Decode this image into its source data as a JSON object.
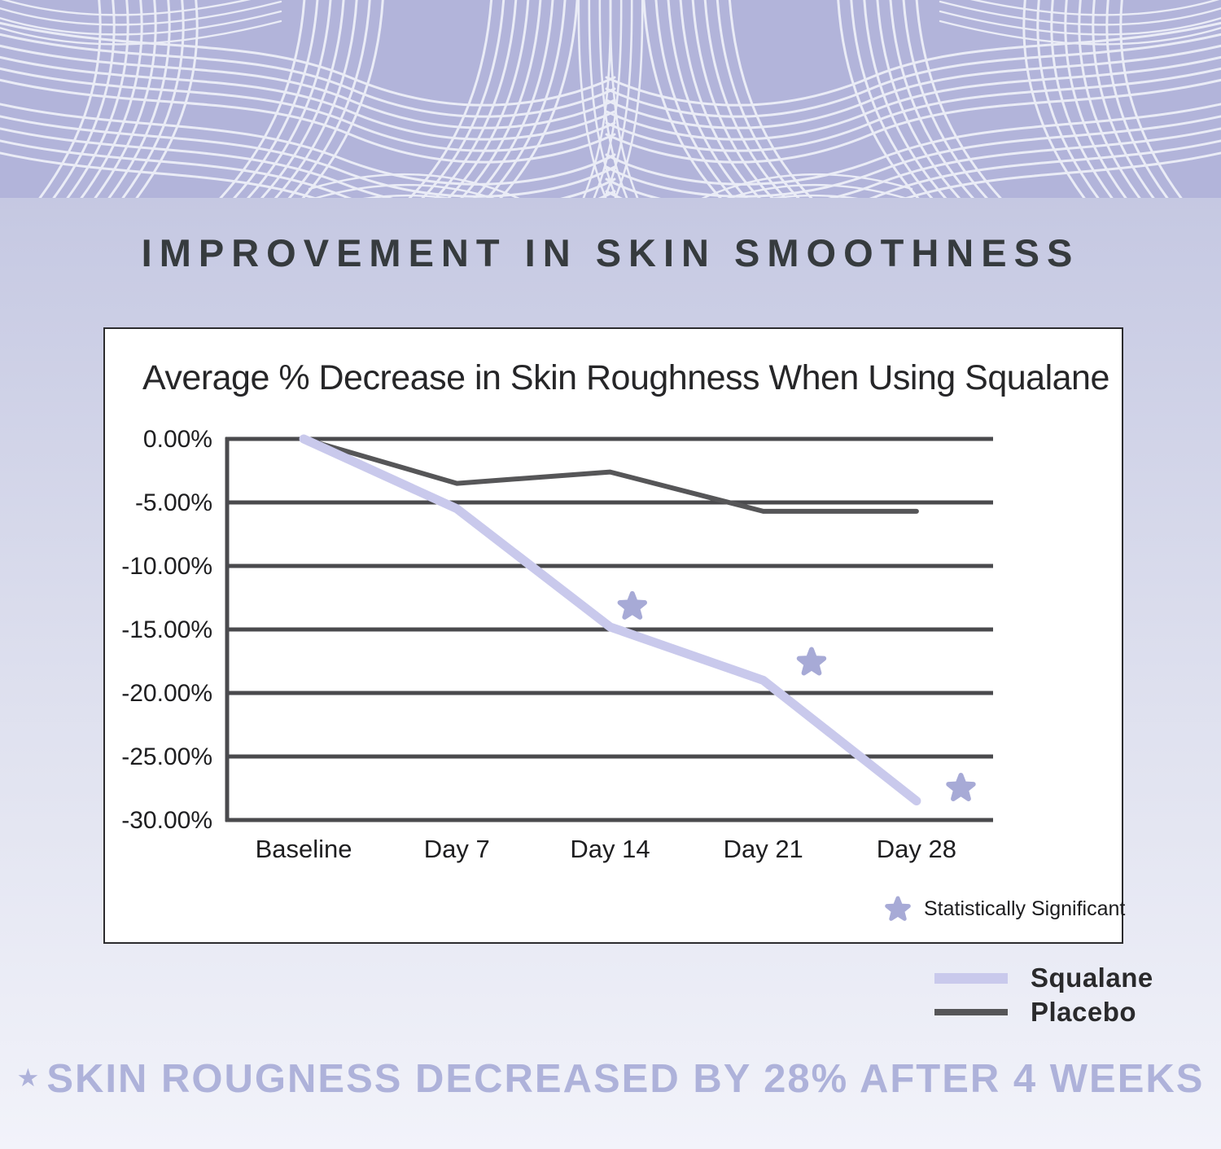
{
  "header": {
    "title": "IMPROVEMENT IN SKIN SMOOTHNESS"
  },
  "chart_data": {
    "type": "line",
    "title": "Average % Decrease in Skin Roughness When Using Squalane",
    "categories": [
      "Baseline",
      "Day 7",
      "Day 14",
      "Day 21",
      "Day 28"
    ],
    "series": [
      {
        "name": "Squalane",
        "color": "#c9c9ec",
        "stroke_width": 11,
        "values": [
          0,
          -5.5,
          -14.8,
          -19,
          -28.5
        ]
      },
      {
        "name": "Placebo",
        "color": "#565658",
        "stroke_width": 6,
        "values": [
          0,
          -3.5,
          -2.6,
          -5.7,
          -5.7
        ]
      }
    ],
    "xlabel": "",
    "ylabel": "",
    "ylim": [
      -30,
      0
    ],
    "y_tick_step": 5,
    "y_ticks": [
      "0.00%",
      "-5.00%",
      "-10.00%",
      "-15.00%",
      "-20.00%",
      "-25.00%",
      "-30.00%"
    ],
    "grid": true,
    "legend_position": "below-chart-right",
    "significance_markers": [
      {
        "near_category": "Day 14",
        "x_frac": 0.529,
        "value": -13.2
      },
      {
        "near_category": "Day 21",
        "x_frac": 0.763,
        "value": -17.6
      },
      {
        "near_category": "Day 28",
        "x_frac": 0.958,
        "value": -27.5
      }
    ],
    "marker_legend_label": "Statistically Significant"
  },
  "legend": {
    "items": [
      {
        "label": "Squalane",
        "color": "#c9c9ec"
      },
      {
        "label": "Placebo",
        "color": "#565658"
      }
    ]
  },
  "footer": {
    "star": "★",
    "text": "SKIN ROUGNESS DECREASED BY 28% AFTER 4 WEEKS"
  },
  "colors": {
    "band_background": "#b2b4da",
    "band_line": "#eaecf6",
    "page_background_top": "#c5c8e2",
    "page_background_bottom": "#f2f3fa",
    "title_text": "#363b3e",
    "card_background": "#ffffff",
    "card_border": "#2c2c2e",
    "grid": "#4a4a4d",
    "axis_text": "#1e1e20",
    "squalane": "#c9c9ec",
    "placebo": "#565658",
    "star": "#a7aad6",
    "footer_text": "#aeb2da",
    "legend_text": "#2a2a2c"
  }
}
